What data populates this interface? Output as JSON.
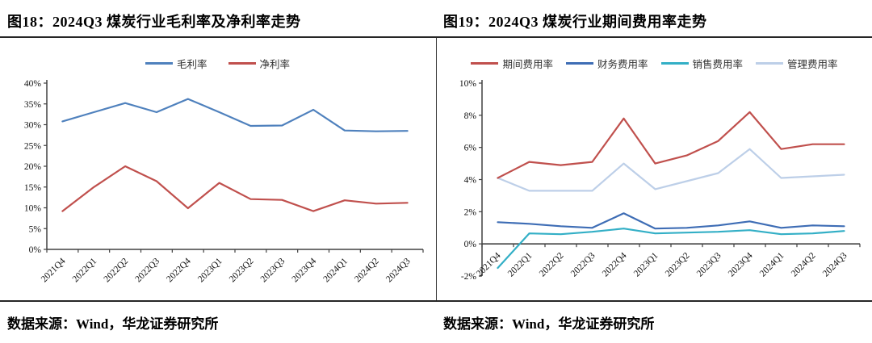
{
  "page": {
    "left_panel": {
      "title": "图18：2024Q3 煤炭行业毛利率及净利率走势",
      "source": "数据来源：Wind，华龙证券研究所"
    },
    "right_panel": {
      "title": "图19：2024Q3 煤炭行业期间费用率走势",
      "source": "数据来源：Wind，华龙证券研究所"
    }
  },
  "colors": {
    "gross_margin_blue": "#4F81BD",
    "net_margin_red": "#C0504D",
    "period_expense_red": "#C0504D",
    "finance_expense_blue": "#3E6DB5",
    "sales_expense_teal": "#33AFC6",
    "admin_expense_lightblue": "#BDCFE8",
    "axis": "#404040",
    "rule": "#262626"
  },
  "chart_data": [
    {
      "type": "line",
      "title": "2024Q3 煤炭行业毛利率及净利率走势",
      "categories": [
        "2021Q4",
        "2022Q1",
        "2022Q2",
        "2022Q3",
        "2022Q4",
        "2023Q1",
        "2023Q2",
        "2023Q3",
        "2023Q4",
        "2024Q1",
        "2024Q2",
        "2024Q3"
      ],
      "series": [
        {
          "name": "毛利率",
          "color": "#4F81BD",
          "values": [
            30.8,
            33.0,
            35.2,
            33.0,
            36.2,
            33.0,
            29.7,
            29.8,
            33.6,
            28.6,
            28.4,
            28.5
          ]
        },
        {
          "name": "净利率",
          "color": "#C0504D",
          "values": [
            9.2,
            15.0,
            20.0,
            16.4,
            9.9,
            16.0,
            12.1,
            11.9,
            9.2,
            11.8,
            11.0,
            11.2
          ]
        }
      ],
      "xlabel": "",
      "ylabel": "",
      "ylim": [
        0,
        40
      ],
      "ytick_step": 5,
      "ytick_suffix": "%",
      "grid": false,
      "legend_position": "top"
    },
    {
      "type": "line",
      "title": "2024Q3 煤炭行业期间费用率走势",
      "categories": [
        "2021Q4",
        "2022Q1",
        "2022Q2",
        "2022Q3",
        "2022Q4",
        "2023Q1",
        "2023Q2",
        "2023Q3",
        "2023Q4",
        "2024Q1",
        "2024Q2",
        "2024Q3"
      ],
      "series": [
        {
          "name": "期间费用率",
          "color": "#C0504D",
          "values": [
            4.1,
            5.1,
            4.9,
            5.1,
            7.8,
            5.0,
            5.5,
            6.4,
            8.2,
            5.9,
            6.2,
            6.2
          ]
        },
        {
          "name": "财务费用率",
          "color": "#3E6DB5",
          "values": [
            1.35,
            1.25,
            1.1,
            1.0,
            1.9,
            0.95,
            1.0,
            1.15,
            1.4,
            1.0,
            1.15,
            1.1
          ]
        },
        {
          "name": "销售费用率",
          "color": "#33AFC6",
          "values": [
            -1.5,
            0.65,
            0.6,
            0.75,
            0.95,
            0.65,
            0.7,
            0.75,
            0.85,
            0.6,
            0.65,
            0.8
          ]
        },
        {
          "name": "管理费用率",
          "color": "#BDCFE8",
          "values": [
            4.1,
            3.3,
            3.3,
            3.3,
            5.0,
            3.4,
            3.9,
            4.4,
            5.9,
            4.1,
            4.2,
            4.3
          ]
        }
      ],
      "xlabel": "",
      "ylabel": "",
      "ylim": [
        -2,
        10
      ],
      "ytick_step": 2,
      "ytick_suffix": "%",
      "grid": false,
      "legend_position": "top"
    }
  ]
}
